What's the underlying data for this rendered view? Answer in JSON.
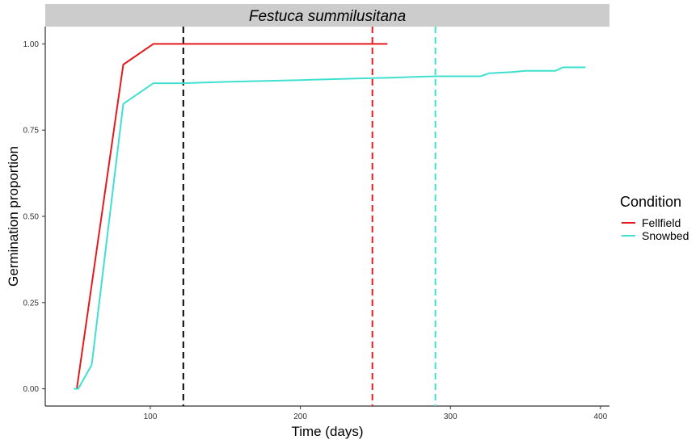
{
  "chart_data": {
    "type": "line",
    "title": "Festuca summilusitana",
    "xlabel": "Time (days)",
    "ylabel": "Germination proportion",
    "xlim": [
      30,
      406
    ],
    "ylim": [
      -0.05,
      1.05
    ],
    "x_ticks": [
      100,
      200,
      300,
      400
    ],
    "y_ticks": [
      0.0,
      0.25,
      0.5,
      0.75,
      1.0
    ],
    "y_tick_labels": [
      "0.00",
      "0.25",
      "0.50",
      "0.75",
      "1.00"
    ],
    "grid": false,
    "legend": {
      "title": "Condition",
      "position": "right"
    },
    "series": [
      {
        "name": "Fellfield",
        "color": "#e41a1c",
        "x": [
          51,
          82,
          102,
          258
        ],
        "y": [
          0.0,
          0.94,
          1.0,
          1.0
        ]
      },
      {
        "name": "Snowbed",
        "color": "#40e0d0",
        "x": [
          49,
          52,
          61,
          82,
          102,
          122,
          150,
          200,
          240,
          260,
          290,
          320,
          326,
          340,
          350,
          370,
          375,
          390
        ],
        "y": [
          0.0,
          0.0,
          0.07,
          0.826,
          0.886,
          0.886,
          0.89,
          0.895,
          0.9,
          0.902,
          0.906,
          0.906,
          0.915,
          0.918,
          0.922,
          0.922,
          0.932,
          0.932
        ]
      }
    ],
    "vlines": [
      {
        "x": 122,
        "color": "#000000",
        "style": "dashed"
      },
      {
        "x": 248,
        "color": "#e41a1c",
        "style": "dashed"
      },
      {
        "x": 290,
        "color": "#40e0d0",
        "style": "dashed"
      }
    ]
  }
}
